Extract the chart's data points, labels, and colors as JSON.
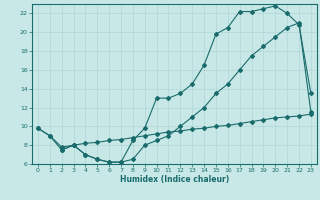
{
  "title": "",
  "xlabel": "Humidex (Indice chaleur)",
  "ylabel": "",
  "bg_color": "#c8e8e8",
  "grid_color": "#b0d4d4",
  "line_color": "#1a6b6b",
  "xlim": [
    -0.5,
    23.5
  ],
  "ylim": [
    6,
    23
  ],
  "xticks": [
    0,
    1,
    2,
    3,
    4,
    5,
    6,
    7,
    8,
    9,
    10,
    11,
    12,
    13,
    14,
    15,
    16,
    17,
    18,
    19,
    20,
    21,
    22,
    23
  ],
  "yticks": [
    6,
    8,
    10,
    12,
    14,
    16,
    18,
    20,
    22
  ],
  "line1_x": [
    0,
    1,
    2,
    3,
    4,
    5,
    6,
    7,
    8,
    9,
    10,
    11,
    12,
    13,
    14,
    15,
    16,
    17,
    18,
    19,
    20,
    21,
    22,
    23
  ],
  "line1_y": [
    9.8,
    9.0,
    7.5,
    8.0,
    7.0,
    6.5,
    6.2,
    6.2,
    8.5,
    9.8,
    13.0,
    13.0,
    13.5,
    14.5,
    16.5,
    19.8,
    20.5,
    22.2,
    22.2,
    22.5,
    22.8,
    22.0,
    20.8,
    13.5
  ],
  "line2_x": [
    2,
    3,
    4,
    5,
    6,
    7,
    8,
    9,
    10,
    11,
    12,
    13,
    14,
    15,
    16,
    17,
    18,
    19,
    20,
    21,
    22,
    23
  ],
  "line2_y": [
    7.5,
    8.0,
    7.0,
    6.5,
    6.2,
    6.2,
    6.5,
    8.0,
    8.5,
    9.0,
    10.0,
    11.0,
    12.0,
    13.5,
    14.5,
    16.0,
    17.5,
    18.5,
    19.5,
    20.5,
    21.0,
    11.5
  ],
  "line3_x": [
    0,
    1,
    2,
    3,
    4,
    5,
    6,
    7,
    8,
    9,
    10,
    11,
    12,
    13,
    14,
    15,
    16,
    17,
    18,
    19,
    20,
    21,
    22,
    23
  ],
  "line3_y": [
    9.8,
    9.0,
    7.8,
    8.0,
    8.2,
    8.3,
    8.5,
    8.6,
    8.8,
    9.0,
    9.2,
    9.4,
    9.5,
    9.7,
    9.8,
    10.0,
    10.1,
    10.3,
    10.5,
    10.7,
    10.9,
    11.0,
    11.1,
    11.3
  ],
  "xlabel_fontsize": 5.5,
  "tick_fontsize": 4.5,
  "marker_size": 2.0,
  "line_width": 0.8
}
